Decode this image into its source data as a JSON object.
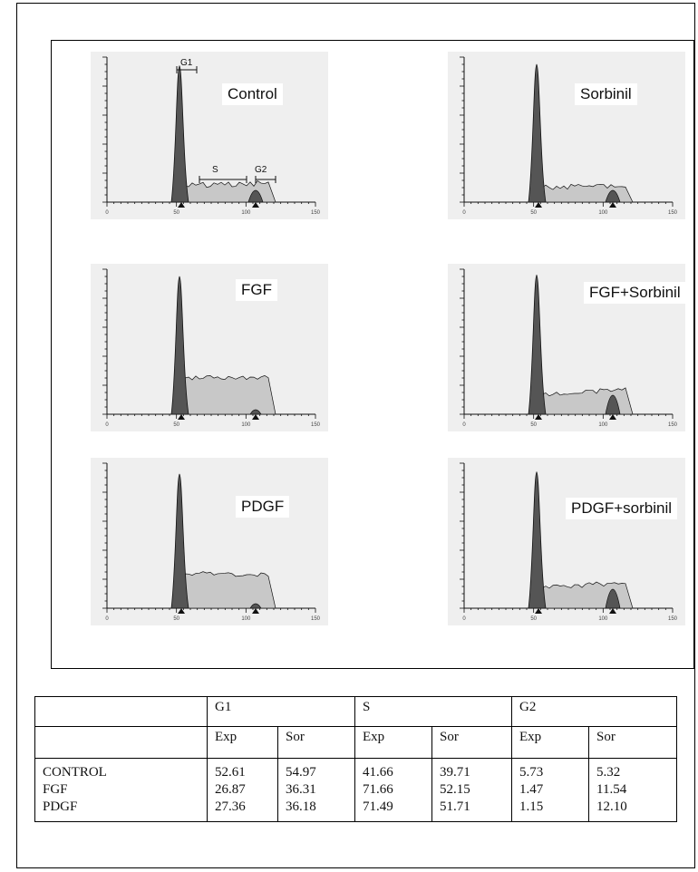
{
  "histograms": [
    {
      "id": "control",
      "label": "Control",
      "show_phase_markers": true
    },
    {
      "id": "sorbinil",
      "label": "Sorbinil",
      "show_phase_markers": false
    },
    {
      "id": "fgf",
      "label": "FGF",
      "show_phase_markers": false
    },
    {
      "id": "fgf_sorbinil",
      "label": "FGF+Sorbinil",
      "show_phase_markers": false
    },
    {
      "id": "pdgf",
      "label": "PDGF",
      "show_phase_markers": false
    },
    {
      "id": "pdgf_sorbinil",
      "label": "PDGF+sorbinil",
      "show_phase_markers": false
    }
  ],
  "phase_markers": {
    "g1": "G1",
    "s": "S",
    "g2": "G2"
  },
  "axis_ticks": [
    "0",
    "50",
    "100",
    "150"
  ],
  "table": {
    "phases": [
      "G1",
      "S",
      "G2"
    ],
    "subheaders": [
      "Exp",
      "Sor",
      "Exp",
      "Sor",
      "Exp",
      "Sor"
    ],
    "rows": [
      {
        "label": "CONTROL",
        "values": [
          "52.61",
          "54.97",
          "41.66",
          "39.71",
          "5.73",
          "5.32"
        ]
      },
      {
        "label": "FGF",
        "values": [
          "26.87",
          "36.31",
          "71.66",
          "52.15",
          "1.47",
          "11.54"
        ]
      },
      {
        "label": "PDGF",
        "values": [
          "27.36",
          "36.18",
          "71.49",
          "51.71",
          "1.15",
          "12.10"
        ]
      }
    ]
  },
  "colors": {
    "g1_fill": "#555555",
    "s_fill": "#c8c8c8",
    "outline": "#111111",
    "marker": "#111111"
  }
}
